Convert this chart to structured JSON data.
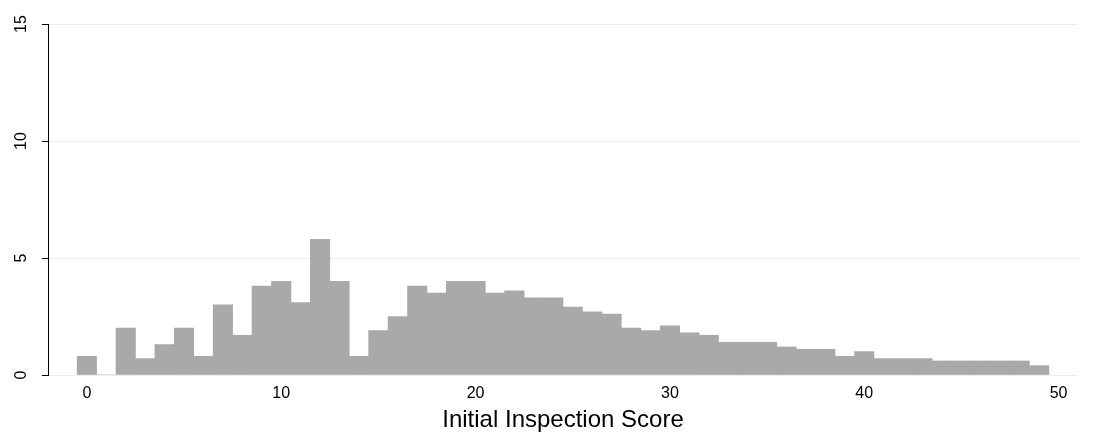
{
  "chart_data": {
    "type": "histogram",
    "xlabel": "Initial Inspection Score",
    "bins": [
      -0.5,
      0.5,
      1.5,
      2.5,
      3.5,
      4.5,
      5.5,
      6.5,
      7.5,
      8.5,
      9.5,
      10.5,
      11.5,
      12.5,
      13.5,
      14.5,
      15.5,
      16.5,
      17.5,
      18.5,
      19.5,
      20.5,
      21.5,
      22.5,
      23.5,
      24.5,
      25.5,
      26.5,
      27.5,
      28.5,
      29.5,
      30.5,
      31.5,
      32.5,
      33.5,
      34.5,
      35.5,
      36.5,
      37.5,
      38.5,
      39.5,
      40.5,
      41.5,
      42.5,
      43.5,
      44.5,
      45.5,
      46.5,
      47.5,
      48.5,
      49.5
    ],
    "values": [
      0.8,
      0,
      2.0,
      0.7,
      1.3,
      2.0,
      0.8,
      3.0,
      1.7,
      3.8,
      4.0,
      3.1,
      5.8,
      4.0,
      0.8,
      1.9,
      2.5,
      3.8,
      3.5,
      4.0,
      4.0,
      3.5,
      3.6,
      3.3,
      3.3,
      2.9,
      2.7,
      2.6,
      2.0,
      1.9,
      2.1,
      1.8,
      1.7,
      1.4,
      1.4,
      1.4,
      1.2,
      1.1,
      1.1,
      0.8,
      1.0,
      0.7,
      0.7,
      0.7,
      0.6,
      0.6,
      0.6,
      0.6,
      0.6,
      0.4
    ],
    "color": "#a9a9a9",
    "xlim": [
      -2,
      51
    ],
    "xticks": [
      0,
      10,
      20,
      30,
      40,
      50
    ],
    "ylim": [
      0,
      15
    ],
    "yticks": [
      0,
      5,
      10,
      15
    ],
    "grid": "y"
  }
}
